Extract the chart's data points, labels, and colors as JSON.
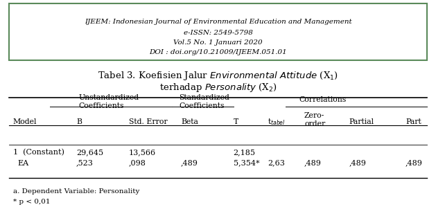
{
  "header_line1": "IJEEM: Indonesian Journal of Environmental Education and Management",
  "header_line2": "e-ISSN: 2549-5798",
  "header_line3": "Vol.5 No. 1 Januari 2020",
  "header_line4": "DOI : doi.org/10.21009/IJEEM.051.01",
  "footnote1": "a. Dependent Variable: Personality",
  "footnote2": "* p < 0,01",
  "bg_color": "#ffffff",
  "border_color": "#5a8a5a"
}
